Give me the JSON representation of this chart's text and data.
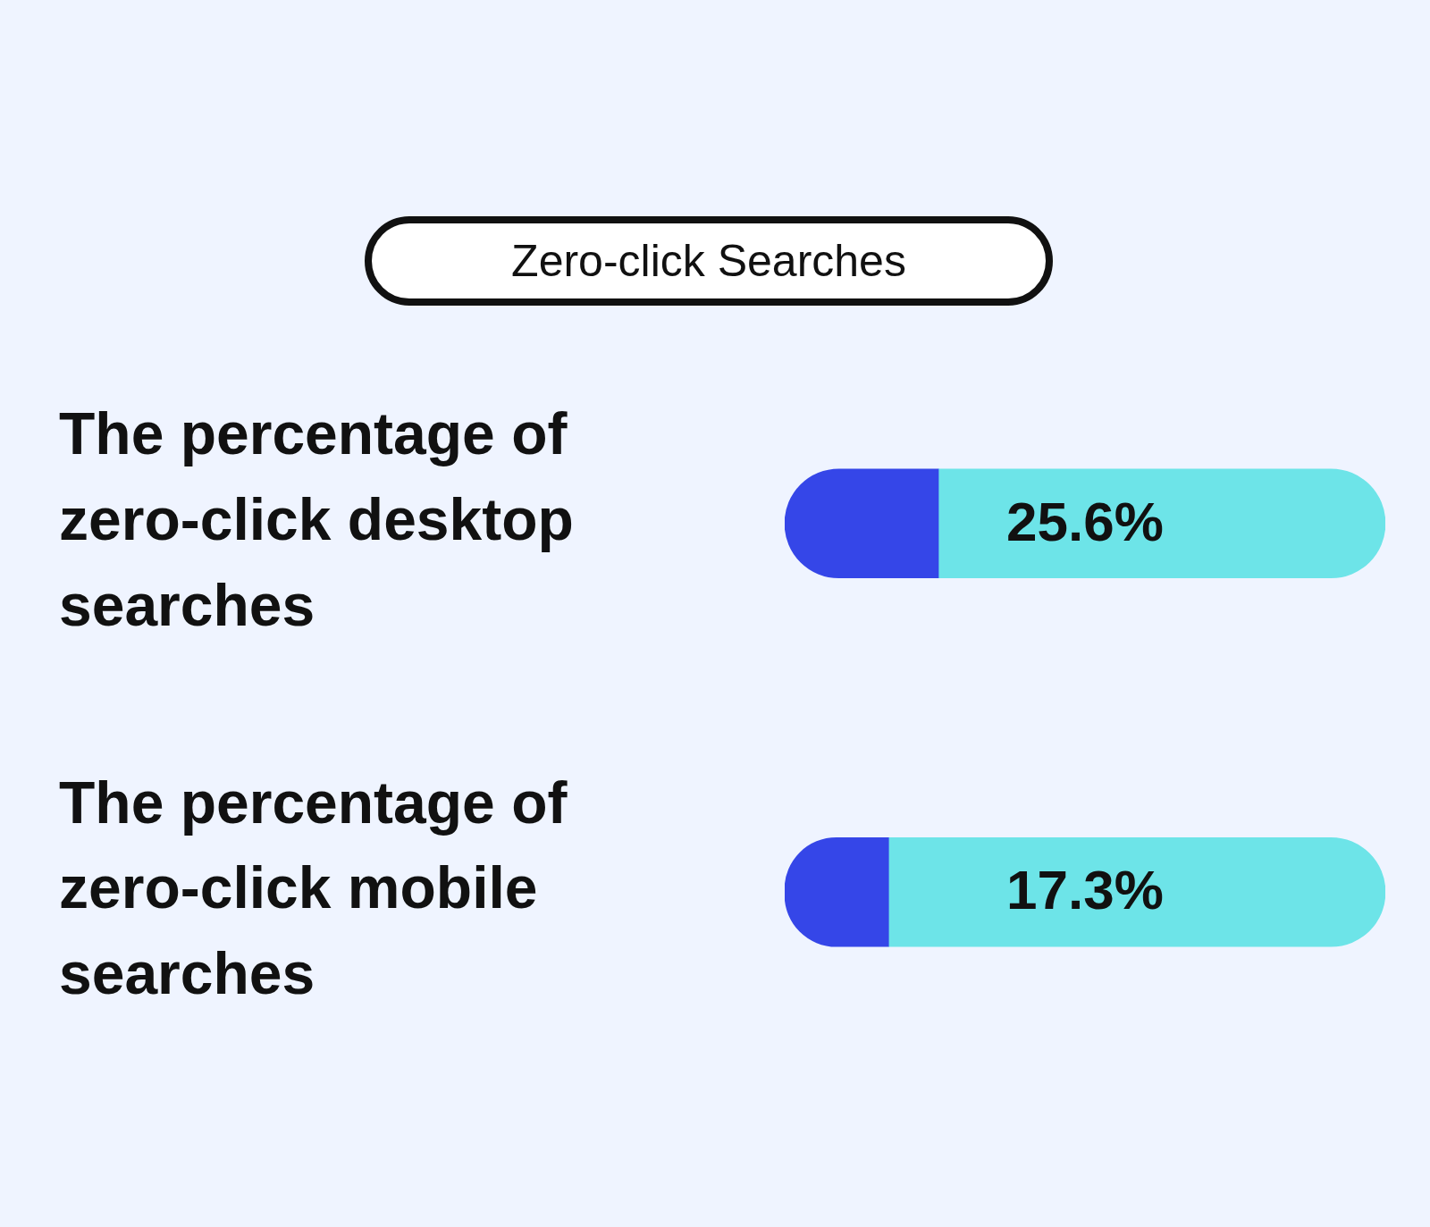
{
  "chart_data": {
    "type": "bar",
    "orientation": "horizontal",
    "title": "Zero-click Searches",
    "categories": [
      "The percentage of zero-click desktop searches",
      "The percentage of zero-click mobile searches"
    ],
    "series": [
      {
        "values": [
          25.6,
          17.3
        ],
        "color": "#3546e8",
        "value_labels": [
          "25.6%",
          "17.3%"
        ]
      },
      {
        "values": [
          74.4,
          82.7
        ],
        "color": "#6de4e8"
      }
    ],
    "stacked": true,
    "xlim": [
      0,
      100
    ],
    "tick_labels": "y",
    "legend": false
  }
}
